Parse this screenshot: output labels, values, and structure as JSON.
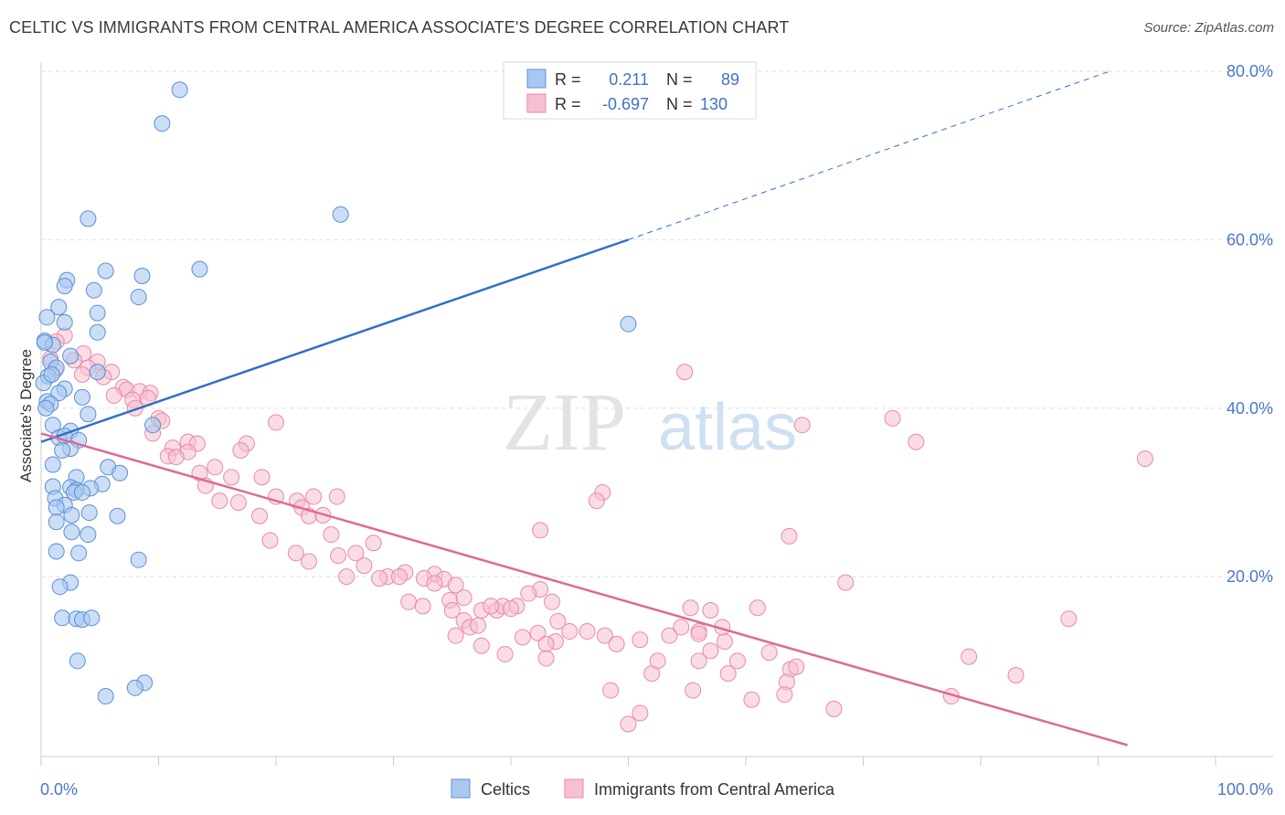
{
  "header": {
    "title": "CELTIC VS IMMIGRANTS FROM CENTRAL AMERICA ASSOCIATE'S DEGREE CORRELATION CHART",
    "source": "Source: ZipAtlas.com"
  },
  "watermark": {
    "zip": "ZIP",
    "atlas": "atlas"
  },
  "legend_box": {
    "rows": [
      {
        "r_label": "R =",
        "r_value": "0.211",
        "n_label": "N =",
        "n_value": "89"
      },
      {
        "r_label": "R =",
        "r_value": "-0.697",
        "n_label": "N =",
        "n_value": "130"
      }
    ]
  },
  "colors": {
    "celtic_fill": "#a9c8f0",
    "celtic_stroke": "#5b8fd6",
    "celtic_line": "#2f6fcd",
    "immig_fill": "#f6c0d0",
    "immig_stroke": "#e88aa8",
    "immig_line": "#e06894",
    "value_text": "#3f72c6"
  },
  "chart_data": {
    "type": "scatter",
    "title": "CELTIC VS IMMIGRANTS FROM CENTRAL AMERICA ASSOCIATE'S DEGREE CORRELATION CHART",
    "xlabel": "",
    "ylabel": "Associate's Degree",
    "xlim": [
      0,
      100
    ],
    "ylim": [
      0,
      80
    ],
    "x_tick_labels": [
      "0.0%",
      "100.0%"
    ],
    "y_ticks": [
      20,
      40,
      60,
      80
    ],
    "y_tick_labels": [
      "20.0%",
      "40.0%",
      "60.0%",
      "80.0%"
    ],
    "grid": true,
    "legend": "bottom",
    "series": [
      {
        "name": "Celtics",
        "R": 0.211,
        "N": 89,
        "trend": {
          "x0": 0,
          "y0": 36.0,
          "x1": 50,
          "y1": 60.0,
          "dashed_to_x": 91,
          "dashed_to_y": 80.0
        },
        "points": [
          [
            11.8,
            77.8
          ],
          [
            10.3,
            73.8
          ],
          [
            4.0,
            62.5
          ],
          [
            25.5,
            63.0
          ],
          [
            13.5,
            56.5
          ],
          [
            5.5,
            56.3
          ],
          [
            8.6,
            55.7
          ],
          [
            2.2,
            55.2
          ],
          [
            2.0,
            54.5
          ],
          [
            4.5,
            54.0
          ],
          [
            8.3,
            53.2
          ],
          [
            1.5,
            52.0
          ],
          [
            4.8,
            51.3
          ],
          [
            0.5,
            50.8
          ],
          [
            2.0,
            50.2
          ],
          [
            4.8,
            49.0
          ],
          [
            0.3,
            48.0
          ],
          [
            1.0,
            47.5
          ],
          [
            2.5,
            46.2
          ],
          [
            0.8,
            45.5
          ],
          [
            1.3,
            44.8
          ],
          [
            4.8,
            44.3
          ],
          [
            0.6,
            43.8
          ],
          [
            0.2,
            43.0
          ],
          [
            2.0,
            42.3
          ],
          [
            1.5,
            41.8
          ],
          [
            3.5,
            41.3
          ],
          [
            0.5,
            40.8
          ],
          [
            0.8,
            40.5
          ],
          [
            0.4,
            40.0
          ],
          [
            4.0,
            39.3
          ],
          [
            1.0,
            38.0
          ],
          [
            9.5,
            38.0
          ],
          [
            2.5,
            37.3
          ],
          [
            1.5,
            36.5
          ],
          [
            2.0,
            36.7
          ],
          [
            3.2,
            36.2
          ],
          [
            2.5,
            35.2
          ],
          [
            1.8,
            35.0
          ],
          [
            1.0,
            33.3
          ],
          [
            5.7,
            33.0
          ],
          [
            6.7,
            32.3
          ],
          [
            3.0,
            31.8
          ],
          [
            5.2,
            31.0
          ],
          [
            1.0,
            30.7
          ],
          [
            2.5,
            30.6
          ],
          [
            4.2,
            30.5
          ],
          [
            3.0,
            30.3
          ],
          [
            2.8,
            30.0
          ],
          [
            3.5,
            30.0
          ],
          [
            1.2,
            29.3
          ],
          [
            2.0,
            28.5
          ],
          [
            1.3,
            28.2
          ],
          [
            4.1,
            27.6
          ],
          [
            6.5,
            27.2
          ],
          [
            2.6,
            27.3
          ],
          [
            1.3,
            26.5
          ],
          [
            2.6,
            25.3
          ],
          [
            4.0,
            25.0
          ],
          [
            1.3,
            23.0
          ],
          [
            3.2,
            22.8
          ],
          [
            8.3,
            22.0
          ],
          [
            2.5,
            19.3
          ],
          [
            1.6,
            18.8
          ],
          [
            1.8,
            15.1
          ],
          [
            3.0,
            15.0
          ],
          [
            3.5,
            14.9
          ],
          [
            4.3,
            15.1
          ],
          [
            3.1,
            10.0
          ],
          [
            8.8,
            7.4
          ],
          [
            8.0,
            6.8
          ],
          [
            5.5,
            5.8
          ],
          [
            50.0,
            50.0
          ],
          [
            0.3,
            47.8
          ],
          [
            0.9,
            44.0
          ]
        ]
      },
      {
        "name": "Immigrants from Central America",
        "R": -0.697,
        "N": 130,
        "trend": {
          "x0": 0,
          "y0": 37.0,
          "x1": 92.5,
          "y1": 0
        },
        "points": [
          [
            2.0,
            48.6
          ],
          [
            1.3,
            47.9
          ],
          [
            3.6,
            46.5
          ],
          [
            0.8,
            45.9
          ],
          [
            2.8,
            45.7
          ],
          [
            4.8,
            45.5
          ],
          [
            4.0,
            44.8
          ],
          [
            1.2,
            44.5
          ],
          [
            6.0,
            44.3
          ],
          [
            3.5,
            44.0
          ],
          [
            5.3,
            43.7
          ],
          [
            7.0,
            42.5
          ],
          [
            7.3,
            42.2
          ],
          [
            8.4,
            42.0
          ],
          [
            9.3,
            41.8
          ],
          [
            6.2,
            41.5
          ],
          [
            7.8,
            41.0
          ],
          [
            9.1,
            41.2
          ],
          [
            8.0,
            40.0
          ],
          [
            10.0,
            38.8
          ],
          [
            10.3,
            38.5
          ],
          [
            20.0,
            38.3
          ],
          [
            9.5,
            37.0
          ],
          [
            12.5,
            36.0
          ],
          [
            13.3,
            35.8
          ],
          [
            17.5,
            35.8
          ],
          [
            11.2,
            35.3
          ],
          [
            17.0,
            35.0
          ],
          [
            12.5,
            34.8
          ],
          [
            10.8,
            34.3
          ],
          [
            11.5,
            34.2
          ],
          [
            14.8,
            33.0
          ],
          [
            13.5,
            32.3
          ],
          [
            18.8,
            31.8
          ],
          [
            16.2,
            31.8
          ],
          [
            14.0,
            30.8
          ],
          [
            23.2,
            29.5
          ],
          [
            25.2,
            29.5
          ],
          [
            20.0,
            29.5
          ],
          [
            21.8,
            29.0
          ],
          [
            15.2,
            29.0
          ],
          [
            16.8,
            28.8
          ],
          [
            22.2,
            28.2
          ],
          [
            22.8,
            27.2
          ],
          [
            18.6,
            27.2
          ],
          [
            24.0,
            27.3
          ],
          [
            24.7,
            25.0
          ],
          [
            19.5,
            24.3
          ],
          [
            28.3,
            24.0
          ],
          [
            21.7,
            22.8
          ],
          [
            26.8,
            22.8
          ],
          [
            25.3,
            22.5
          ],
          [
            22.8,
            21.8
          ],
          [
            27.5,
            21.3
          ],
          [
            29.5,
            20.0
          ],
          [
            31.0,
            20.5
          ],
          [
            26.0,
            20.0
          ],
          [
            30.5,
            20.0
          ],
          [
            28.8,
            19.8
          ],
          [
            33.5,
            20.3
          ],
          [
            34.3,
            19.7
          ],
          [
            32.6,
            19.8
          ],
          [
            33.5,
            19.2
          ],
          [
            35.3,
            19.0
          ],
          [
            34.8,
            17.2
          ],
          [
            31.3,
            17.0
          ],
          [
            36.0,
            17.5
          ],
          [
            42.5,
            18.5
          ],
          [
            41.5,
            18.0
          ],
          [
            43.5,
            17.0
          ],
          [
            32.5,
            16.5
          ],
          [
            35.0,
            16.0
          ],
          [
            37.5,
            16.0
          ],
          [
            38.8,
            16.0
          ],
          [
            39.3,
            16.5
          ],
          [
            40.5,
            16.5
          ],
          [
            40.0,
            16.2
          ],
          [
            38.3,
            16.5
          ],
          [
            36.0,
            14.8
          ],
          [
            36.5,
            14.0
          ],
          [
            37.2,
            14.2
          ],
          [
            44.0,
            14.7
          ],
          [
            46.5,
            13.5
          ],
          [
            45.0,
            13.5
          ],
          [
            48.0,
            13.0
          ],
          [
            53.5,
            13.0
          ],
          [
            56.0,
            13.5
          ],
          [
            42.3,
            13.3
          ],
          [
            35.3,
            13.0
          ],
          [
            41.0,
            12.8
          ],
          [
            43.8,
            12.3
          ],
          [
            43.0,
            12.0
          ],
          [
            56.0,
            13.2
          ],
          [
            49.0,
            12.0
          ],
          [
            37.5,
            11.8
          ],
          [
            51.0,
            12.5
          ],
          [
            58.2,
            12.3
          ],
          [
            58.0,
            14.0
          ],
          [
            57.0,
            16.0
          ],
          [
            55.3,
            16.3
          ],
          [
            61.0,
            16.3
          ],
          [
            62.0,
            11.0
          ],
          [
            63.8,
            9.0
          ],
          [
            63.5,
            7.5
          ],
          [
            64.3,
            9.3
          ],
          [
            58.5,
            8.5
          ],
          [
            56.0,
            10.0
          ],
          [
            59.3,
            10.0
          ],
          [
            57.0,
            11.2
          ],
          [
            63.3,
            6.0
          ],
          [
            48.5,
            6.5
          ],
          [
            52.0,
            8.5
          ],
          [
            55.5,
            6.5
          ],
          [
            60.5,
            5.4
          ],
          [
            50.0,
            2.5
          ],
          [
            51.0,
            3.8
          ],
          [
            67.5,
            4.3
          ],
          [
            54.5,
            14.0
          ],
          [
            39.5,
            10.8
          ],
          [
            43.0,
            10.3
          ],
          [
            54.8,
            44.3
          ],
          [
            72.5,
            38.8
          ],
          [
            74.5,
            36.0
          ],
          [
            94.0,
            34.0
          ],
          [
            64.8,
            38.0
          ],
          [
            47.8,
            30.0
          ],
          [
            47.3,
            29.0
          ],
          [
            63.7,
            24.8
          ],
          [
            68.5,
            19.3
          ],
          [
            52.5,
            10.0
          ],
          [
            79.0,
            10.5
          ],
          [
            83.0,
            8.3
          ],
          [
            87.5,
            15.0
          ],
          [
            77.5,
            5.8
          ],
          [
            42.5,
            25.5
          ]
        ]
      }
    ]
  },
  "bottom_legend": [
    {
      "label": "Celtics"
    },
    {
      "label": "Immigrants from Central America"
    }
  ]
}
